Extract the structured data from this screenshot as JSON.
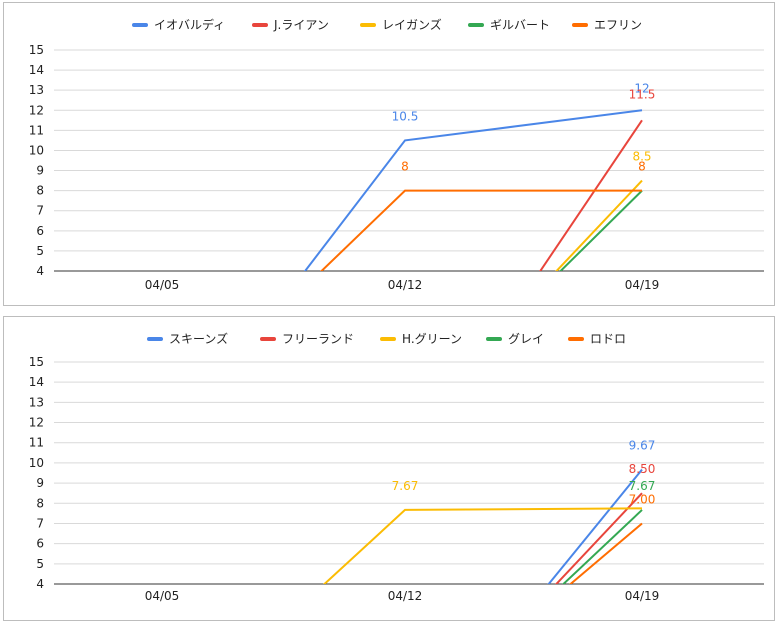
{
  "chart_data": [
    {
      "type": "line",
      "categories": [
        "04/05",
        "04/12",
        "04/19"
      ],
      "ylim": [
        4,
        15
      ],
      "yticks": [
        "4",
        "5",
        "6",
        "7",
        "8",
        "9",
        "10",
        "11",
        "12",
        "13",
        "14",
        "15"
      ],
      "grid": true,
      "legend_position": "top",
      "series": [
        {
          "name": "イオバルディ",
          "color": "#4a86e8",
          "values": [
            null,
            10.5,
            12
          ],
          "labels": [
            "",
            "10.5",
            "12"
          ],
          "lead_in": 0
        },
        {
          "name": "J.ライアン",
          "color": "#e8453c",
          "values": [
            null,
            null,
            11.5
          ],
          "labels": [
            "",
            "",
            "11.5"
          ],
          "lead_in": 0
        },
        {
          "name": "レイガンズ",
          "color": "#fbbc04",
          "values": [
            null,
            null,
            8.5
          ],
          "labels": [
            "",
            "",
            "8.5"
          ],
          "lead_in": 0
        },
        {
          "name": "ギルバート",
          "color": "#34a853",
          "values": [
            null,
            null,
            8
          ],
          "labels": [
            "",
            "",
            ""
          ],
          "lead_in": 0
        },
        {
          "name": "エフリン",
          "color": "#ff6d01",
          "values": [
            null,
            8,
            8
          ],
          "labels": [
            "",
            "8",
            "8"
          ],
          "lead_in": 0
        }
      ]
    },
    {
      "type": "line",
      "categories": [
        "04/05",
        "04/12",
        "04/19"
      ],
      "ylim": [
        4,
        15
      ],
      "yticks": [
        "4",
        "5",
        "6",
        "7",
        "8",
        "9",
        "10",
        "11",
        "12",
        "13",
        "14",
        "15"
      ],
      "grid": true,
      "legend_position": "top",
      "series": [
        {
          "name": "スキーンズ",
          "color": "#4a86e8",
          "values": [
            null,
            null,
            9.67
          ],
          "labels": [
            "",
            "",
            "9.67"
          ],
          "lead_in": 0
        },
        {
          "name": "フリーランド",
          "color": "#e8453c",
          "values": [
            null,
            null,
            8.5
          ],
          "labels": [
            "",
            "",
            "8.50"
          ],
          "lead_in": 0
        },
        {
          "name": "H.グリーン",
          "color": "#fbbc04",
          "values": [
            null,
            7.67,
            7.75
          ],
          "labels": [
            "",
            "7.67",
            ""
          ],
          "lead_in": 0
        },
        {
          "name": "グレイ",
          "color": "#34a853",
          "values": [
            null,
            null,
            7.67
          ],
          "labels": [
            "",
            "",
            "7.67"
          ],
          "lead_in": 0
        },
        {
          "name": "ロドロ",
          "color": "#ff6d01",
          "values": [
            null,
            null,
            7.0
          ],
          "labels": [
            "",
            "",
            "7.00"
          ],
          "lead_in": 0
        }
      ]
    }
  ]
}
